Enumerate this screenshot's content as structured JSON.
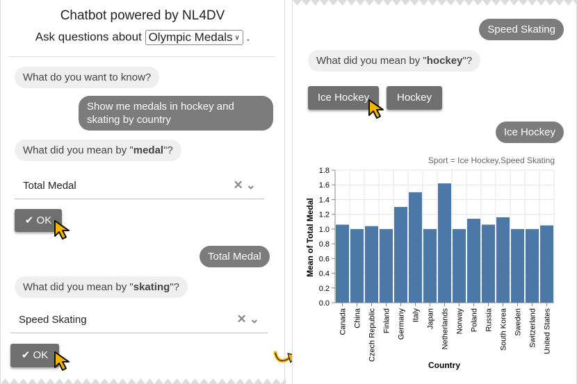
{
  "left": {
    "title": "Chatbot powered by NL4DV",
    "ask_prefix": "Ask questions about",
    "dataset": "Olympic Medals",
    "ask_suffix": ".",
    "messages": {
      "m1": "What do you want to know?",
      "m2": "Show me medals in hockey and skating by country",
      "m3_pre": "What did you mean by \"",
      "m3_term": "medal",
      "m3_post": "\"?",
      "m4": "Total Medal",
      "m5_pre": "What did you mean by \"",
      "m5_term": "skating",
      "m5_post": "\"?"
    },
    "dropdown1": "Total Medal",
    "dropdown2": "Speed Skating",
    "ok_label": "OK"
  },
  "right": {
    "reply1": "Speed Skating",
    "q_pre": "What did you mean by \"",
    "q_term": "hockey",
    "q_post": "\"?",
    "choice1": "Ice Hockey",
    "choice2": "Hockey",
    "reply2": "Ice Hockey"
  },
  "chart_data": {
    "type": "bar",
    "title": "Sport = Ice Hockey,Speed Skating",
    "xlabel": "Country",
    "ylabel": "Mean of Total Medal",
    "ylim": [
      0,
      1.8
    ],
    "yticks": [
      "0.0",
      "0.2",
      "0.4",
      "0.6",
      "0.8",
      "1.0",
      "1.2",
      "1.4",
      "1.6",
      "1.8"
    ],
    "categories": [
      "Canada",
      "China",
      "Czech Republic",
      "Finland",
      "Germany",
      "Italy",
      "Japan",
      "Netherlands",
      "Norway",
      "Poland",
      "Russia",
      "South Korea",
      "Sweden",
      "Switzerland",
      "United States"
    ],
    "values": [
      1.06,
      1.0,
      1.04,
      1.0,
      1.3,
      1.5,
      1.0,
      1.62,
      1.0,
      1.14,
      1.06,
      1.16,
      1.0,
      1.0,
      1.05
    ],
    "bar_color": "#4c78a8"
  }
}
